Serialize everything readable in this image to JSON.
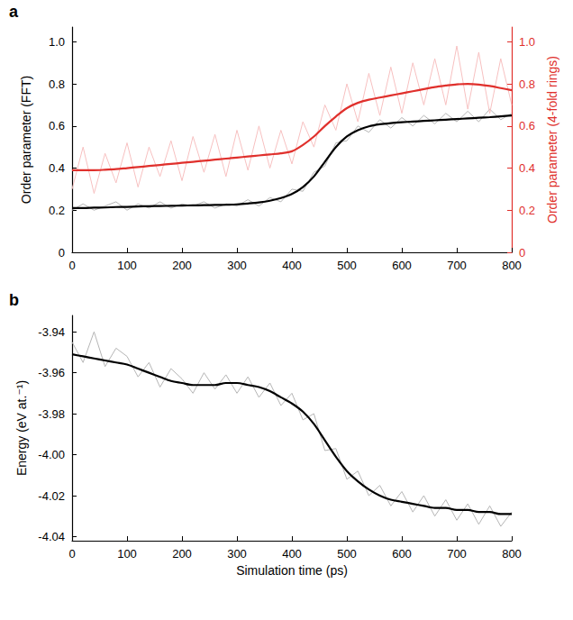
{
  "chart_data": [
    {
      "type": "line",
      "panel": "a",
      "x": [
        0,
        20,
        40,
        60,
        80,
        100,
        120,
        140,
        160,
        180,
        200,
        220,
        240,
        260,
        280,
        300,
        320,
        340,
        360,
        380,
        400,
        420,
        440,
        460,
        480,
        500,
        520,
        540,
        560,
        580,
        600,
        620,
        640,
        660,
        680,
        700,
        720,
        740,
        760,
        780,
        800
      ],
      "xlim": [
        0,
        800
      ],
      "xticks": [
        0,
        100,
        200,
        300,
        400,
        500,
        600,
        700,
        800
      ],
      "ylabel": "Order parameter (FFT)",
      "ylim": [
        0,
        1.07
      ],
      "yticks": [
        0,
        0.2,
        0.4,
        0.6,
        0.8,
        {
          "value": 1,
          "label": "1.0"
        }
      ],
      "y2label": "Order parameter (4-fold rings)",
      "y2lim": [
        0,
        1.07
      ],
      "y2ticks": [
        0,
        0.2,
        0.4,
        0.6,
        0.8,
        {
          "value": 1,
          "label": "1.0"
        }
      ],
      "series": [
        {
          "color": "#b5b5b5",
          "values": [
            0.2,
            0.23,
            0.2,
            0.22,
            0.24,
            0.2,
            0.23,
            0.21,
            0.24,
            0.21,
            0.23,
            0.22,
            0.24,
            0.21,
            0.23,
            0.22,
            0.25,
            0.22,
            0.26,
            0.24,
            0.3,
            0.29,
            0.38,
            0.41,
            0.52,
            0.53,
            0.6,
            0.57,
            0.63,
            0.59,
            0.64,
            0.6,
            0.65,
            0.61,
            0.66,
            0.62,
            0.67,
            0.62,
            0.68,
            0.63,
            0.66
          ]
        },
        {
          "color": "#f7c0c0",
          "axis": "y2",
          "values": [
            0.3,
            0.5,
            0.28,
            0.47,
            0.33,
            0.52,
            0.31,
            0.5,
            0.36,
            0.53,
            0.34,
            0.55,
            0.38,
            0.56,
            0.36,
            0.58,
            0.39,
            0.6,
            0.4,
            0.58,
            0.42,
            0.62,
            0.5,
            0.7,
            0.58,
            0.8,
            0.62,
            0.85,
            0.65,
            0.88,
            0.66,
            0.9,
            0.7,
            0.92,
            0.7,
            0.98,
            0.68,
            0.95,
            0.66,
            0.92,
            0.7
          ]
        },
        {
          "color": "#000000",
          "values": [
            0.21,
            0.21,
            0.212,
            0.213,
            0.215,
            0.216,
            0.218,
            0.219,
            0.22,
            0.221,
            0.222,
            0.223,
            0.224,
            0.225,
            0.226,
            0.228,
            0.232,
            0.237,
            0.245,
            0.258,
            0.277,
            0.31,
            0.36,
            0.43,
            0.5,
            0.55,
            0.58,
            0.598,
            0.608,
            0.614,
            0.618,
            0.621,
            0.624,
            0.627,
            0.63,
            0.633,
            0.636,
            0.639,
            0.642,
            0.646,
            0.65
          ]
        },
        {
          "color": "#e0302c",
          "axis": "y2",
          "values": [
            0.39,
            0.39,
            0.39,
            0.392,
            0.395,
            0.4,
            0.405,
            0.41,
            0.415,
            0.42,
            0.425,
            0.43,
            0.435,
            0.44,
            0.445,
            0.45,
            0.455,
            0.46,
            0.465,
            0.47,
            0.48,
            0.51,
            0.55,
            0.6,
            0.645,
            0.685,
            0.71,
            0.725,
            0.735,
            0.745,
            0.755,
            0.765,
            0.775,
            0.785,
            0.792,
            0.798,
            0.8,
            0.797,
            0.79,
            0.78,
            0.77
          ]
        }
      ]
    },
    {
      "type": "line",
      "panel": "b",
      "x": [
        0,
        20,
        40,
        60,
        80,
        100,
        120,
        140,
        160,
        180,
        200,
        220,
        240,
        260,
        280,
        300,
        320,
        340,
        360,
        380,
        400,
        420,
        440,
        460,
        480,
        500,
        520,
        540,
        560,
        580,
        600,
        620,
        640,
        660,
        680,
        700,
        720,
        740,
        760,
        780,
        800
      ],
      "xlabel": "Simulation time (ps)",
      "xlim": [
        0,
        800
      ],
      "xticks": [
        0,
        100,
        200,
        300,
        400,
        500,
        600,
        700,
        800
      ],
      "ylabel": "Energy (eV at.⁻¹)",
      "ylim": [
        -4.042,
        -3.932
      ],
      "yticks": [
        -4.04,
        -4.02,
        {
          "value": -4,
          "label": "-4.00"
        },
        -3.98,
        -3.96,
        -3.94
      ],
      "series": [
        {
          "color": "#b5b5b5",
          "values": [
            -3.945,
            -3.955,
            -3.94,
            -3.957,
            -3.948,
            -3.952,
            -3.962,
            -3.955,
            -3.967,
            -3.958,
            -3.963,
            -3.97,
            -3.96,
            -3.968,
            -3.961,
            -3.97,
            -3.962,
            -3.972,
            -3.965,
            -3.976,
            -3.97,
            -3.983,
            -3.98,
            -3.998,
            -3.997,
            -4.012,
            -4.008,
            -4.02,
            -4.015,
            -4.025,
            -4.018,
            -4.028,
            -4.02,
            -4.03,
            -4.022,
            -4.032,
            -4.024,
            -4.034,
            -4.025,
            -4.035,
            -4.028
          ]
        },
        {
          "color": "#000000",
          "values": [
            -3.951,
            -3.952,
            -3.953,
            -3.954,
            -3.955,
            -3.956,
            -3.958,
            -3.96,
            -3.962,
            -3.964,
            -3.965,
            -3.966,
            -3.966,
            -3.966,
            -3.965,
            -3.965,
            -3.966,
            -3.967,
            -3.969,
            -3.972,
            -3.975,
            -3.979,
            -3.985,
            -3.993,
            -4.001,
            -4.008,
            -4.013,
            -4.017,
            -4.02,
            -4.022,
            -4.023,
            -4.024,
            -4.025,
            -4.026,
            -4.026,
            -4.027,
            -4.027,
            -4.028,
            -4.028,
            -4.029,
            -4.029
          ]
        }
      ]
    }
  ]
}
